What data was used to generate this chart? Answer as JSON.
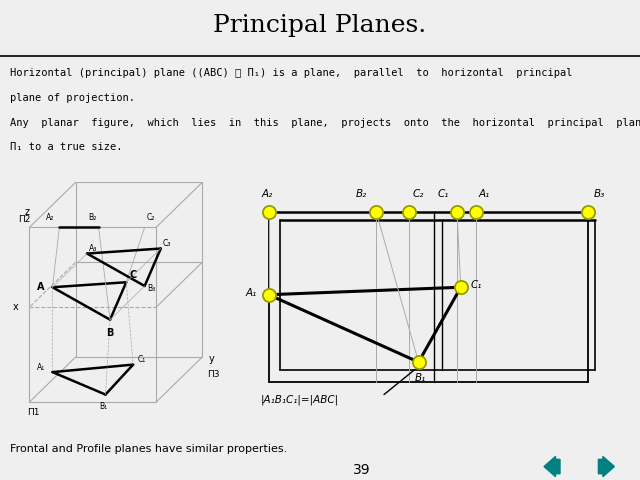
{
  "title": "Principal Planes.",
  "title_fontsize": 18,
  "bg_color": "#efefef",
  "text_color": "#000000",
  "footer_text": "Frontal and Profile planes have similar properties.",
  "page_number": "39",
  "yellow_dot_color": "#ffff00",
  "yellow_dot_edge": "#999900",
  "black_line_color": "#000000",
  "gray_line_color": "#aaaaaa",
  "teal_color": "#008080"
}
